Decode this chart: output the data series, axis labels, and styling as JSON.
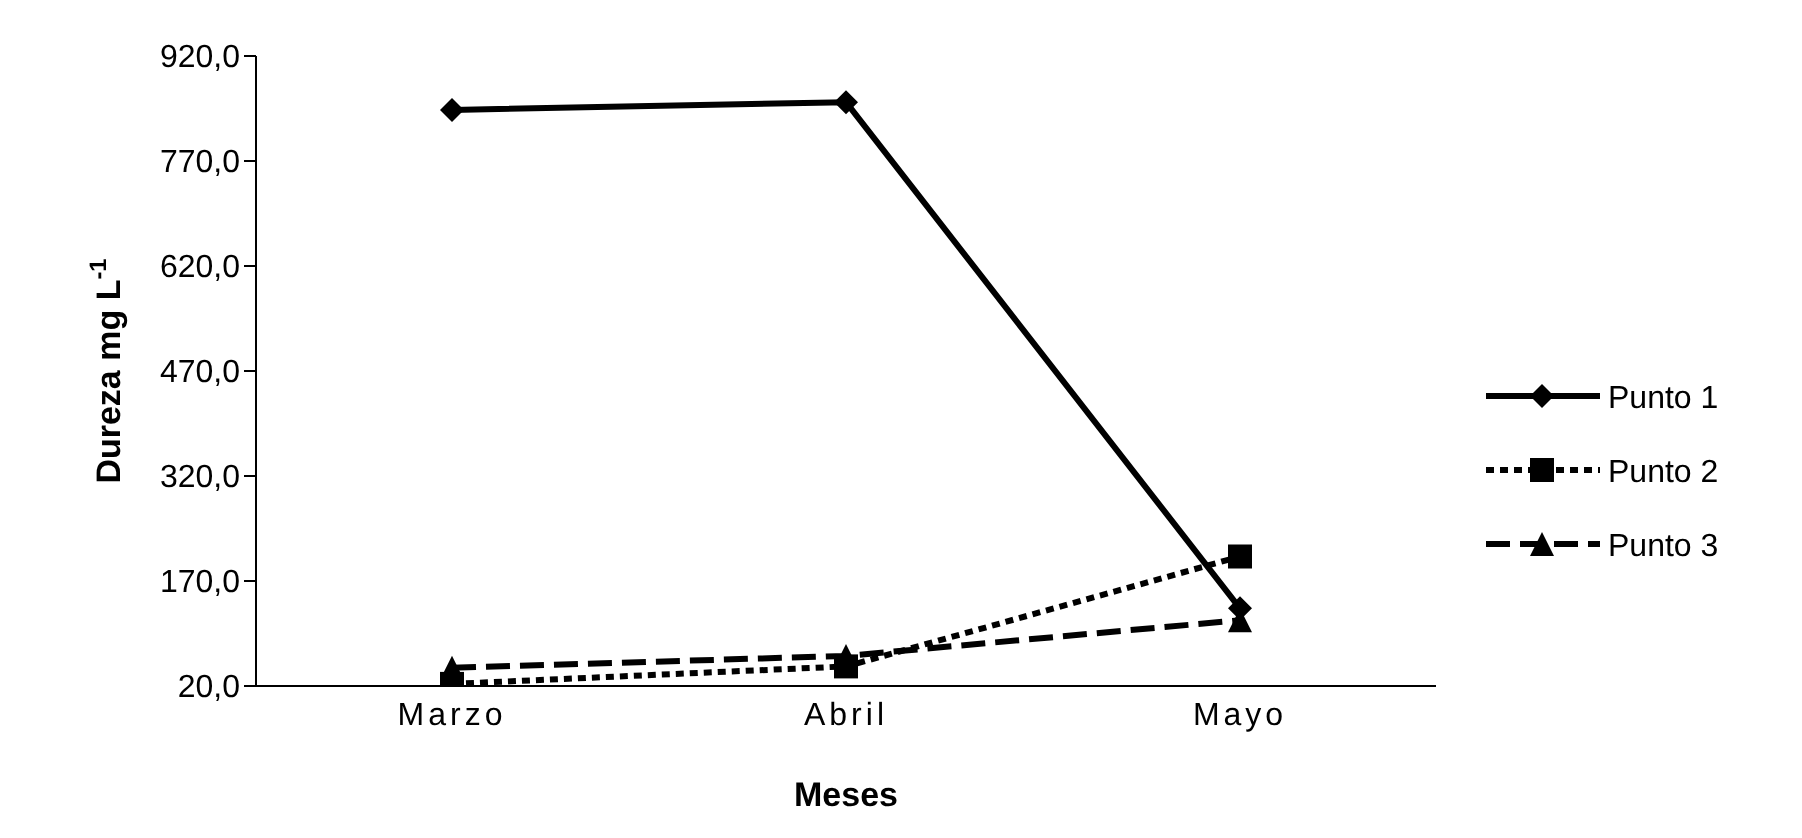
{
  "chart_data": {
    "type": "line",
    "xlabel": "Meses",
    "ylabel": "Dureza mg L$^{-1}$",
    "categories": [
      "Marzo",
      "Abril",
      "Mayo"
    ],
    "series": [
      {
        "name": "Punto 1",
        "color": "#000000",
        "marker": "diamond",
        "line_style": "solid",
        "values": [
          843,
          854,
          131
        ]
      },
      {
        "name": "Punto 2",
        "color": "#000000",
        "marker": "square",
        "line_style": "dotted",
        "values": [
          23,
          48,
          205
        ]
      },
      {
        "name": "Punto 3",
        "color": "#000000",
        "marker": "triangle",
        "line_style": "dashed",
        "values": [
          46,
          63,
          114
        ]
      }
    ],
    "ylim": [
      20,
      920
    ],
    "yticks": [
      {
        "value": 20,
        "label": "20,0"
      },
      {
        "value": 170,
        "label": "170,0"
      },
      {
        "value": 320,
        "label": "320,0"
      },
      {
        "value": 470,
        "label": "470,0"
      },
      {
        "value": 620,
        "label": "620,0"
      },
      {
        "value": 770,
        "label": "770,0"
      },
      {
        "value": 920,
        "label": "920,0"
      }
    ],
    "grid": false,
    "legend": "right"
  }
}
